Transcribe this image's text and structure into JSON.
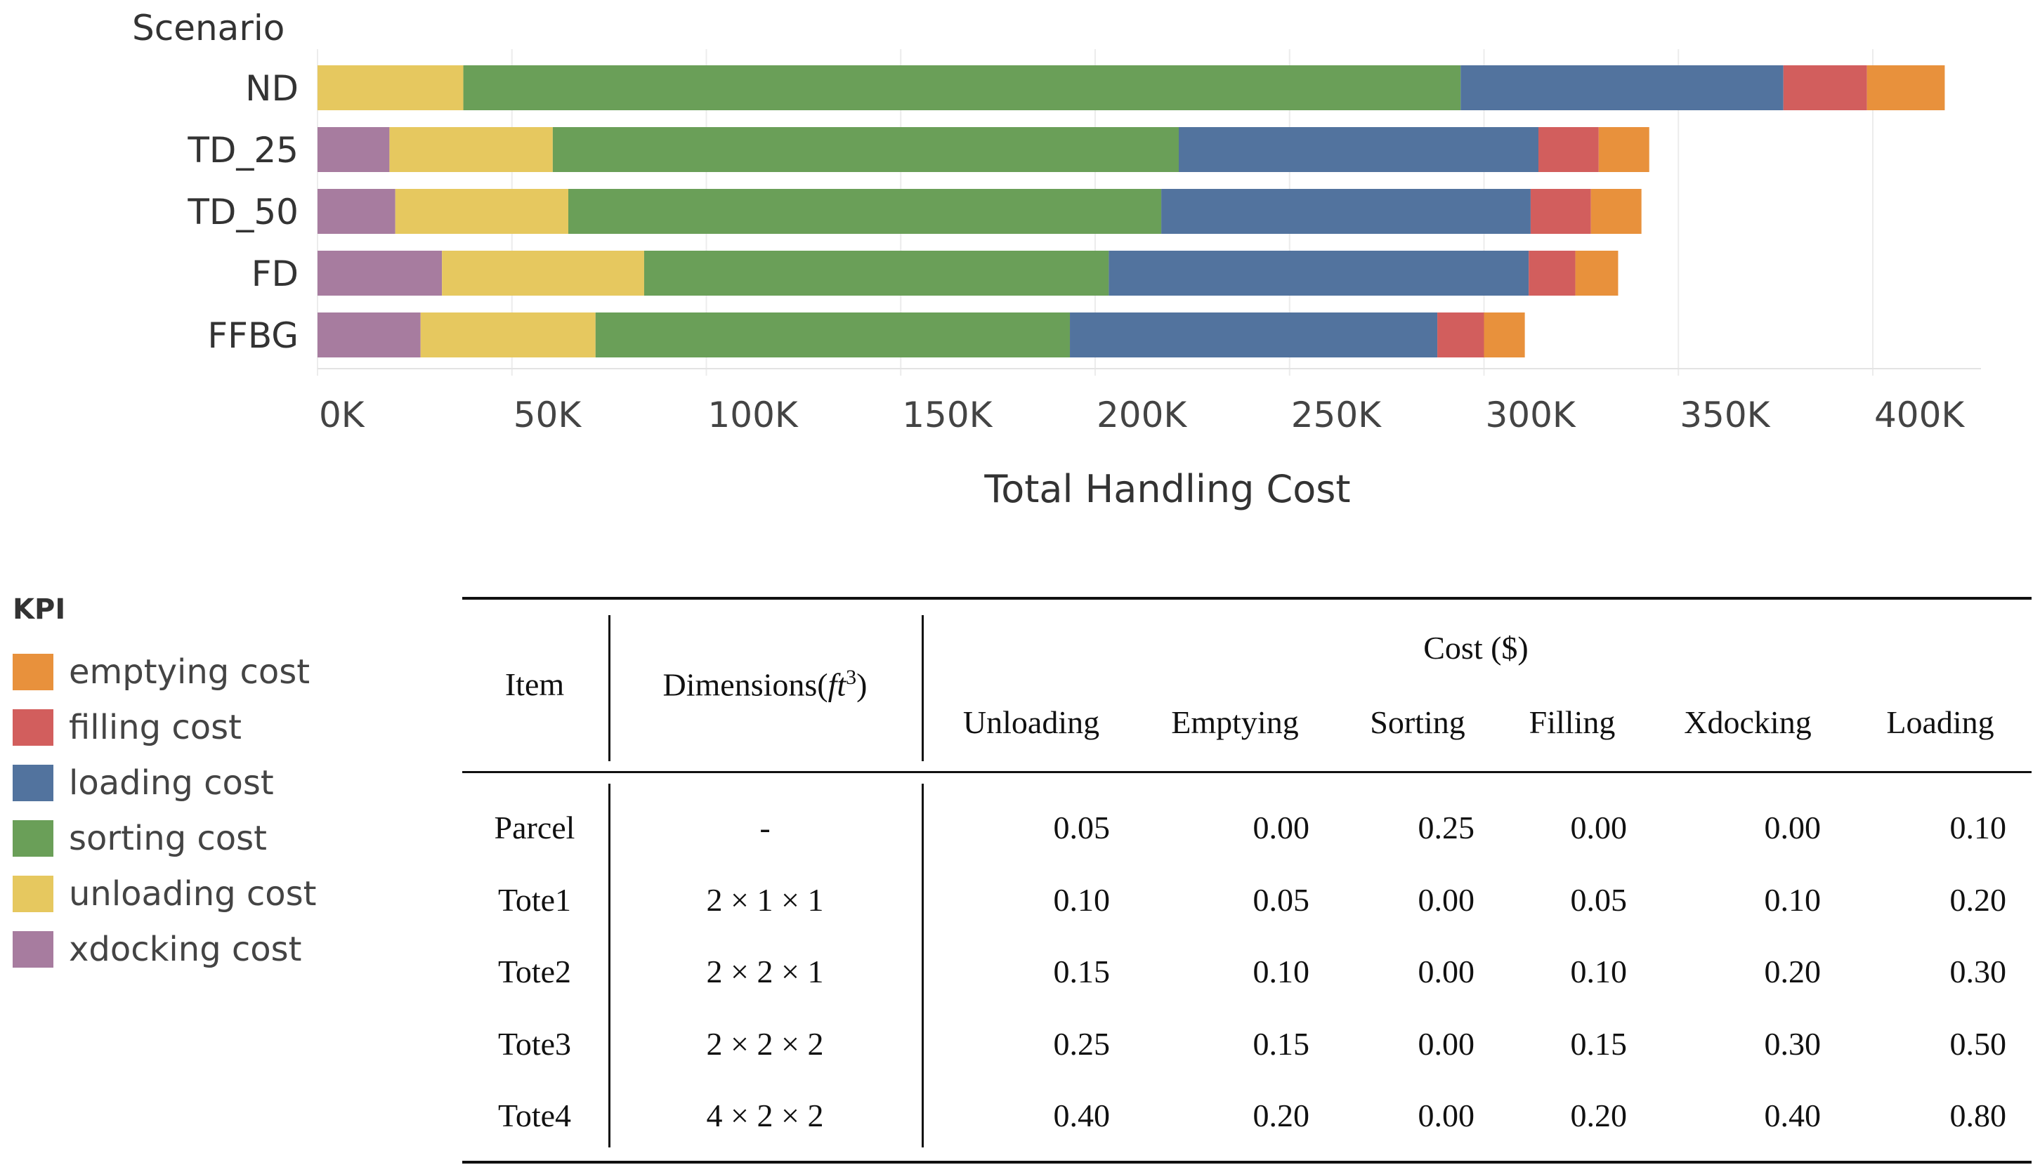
{
  "chart_data": {
    "type": "bar",
    "orientation": "horizontal",
    "stacked": true,
    "category_axis_title": "Scenario",
    "categories": [
      "ND",
      "TD_25",
      "TD_50",
      "FD",
      "FFBG"
    ],
    "series": [
      {
        "name": "xdocking cost",
        "color": "#A77C9F",
        "values": [
          0,
          18500,
          20000,
          32000,
          26500
        ]
      },
      {
        "name": "unloading cost",
        "color": "#E6C85F",
        "values": [
          37500,
          42000,
          44500,
          52000,
          45000
        ]
      },
      {
        "name": "sorting cost",
        "color": "#6A9F58",
        "values": [
          256500,
          161000,
          152500,
          119500,
          122000
        ]
      },
      {
        "name": "loading cost",
        "color": "#52739E",
        "values": [
          83000,
          92500,
          95000,
          108000,
          94500
        ]
      },
      {
        "name": "filling cost",
        "color": "#D25E5D",
        "values": [
          21500,
          15500,
          15500,
          12000,
          12000
        ]
      },
      {
        "name": "emptying cost",
        "color": "#E8913C",
        "values": [
          20000,
          13000,
          13000,
          11000,
          10500
        ]
      }
    ],
    "xlabel": "Total Handling Cost",
    "xlim": [
      0,
      430000
    ],
    "xticks": [
      0,
      50000,
      100000,
      150000,
      200000,
      250000,
      300000,
      350000,
      400000
    ],
    "xtick_labels": [
      "0K",
      "50K",
      "100K",
      "150K",
      "200K",
      "250K",
      "300K",
      "350K",
      "400K"
    ],
    "grid": true,
    "legend_position": "bottom-left"
  },
  "legend": {
    "title": "KPI",
    "items": [
      {
        "label": "emptying cost",
        "color": "#E8913C"
      },
      {
        "label": "filling cost",
        "color": "#D25E5D"
      },
      {
        "label": "loading cost",
        "color": "#52739E"
      },
      {
        "label": "sorting cost",
        "color": "#6A9F58"
      },
      {
        "label": "unloading cost",
        "color": "#E6C85F"
      },
      {
        "label": "xdocking cost",
        "color": "#A77C9F"
      }
    ]
  },
  "table": {
    "header": {
      "item": "Item",
      "dimensions": "Dimensions",
      "dimensions_unit": "ft",
      "dimensions_exp": "3",
      "cost_group": "Cost ($)",
      "cost_columns": [
        "Unloading",
        "Emptying",
        "Sorting",
        "Filling",
        "Xdocking",
        "Loading"
      ]
    },
    "rows": [
      {
        "item": "Parcel",
        "dimensions": "-",
        "costs": [
          "0.05",
          "0.00",
          "0.25",
          "0.00",
          "0.00",
          "0.10"
        ]
      },
      {
        "item": "Tote1",
        "dimensions": "2 × 1 × 1",
        "costs": [
          "0.10",
          "0.05",
          "0.00",
          "0.05",
          "0.10",
          "0.20"
        ]
      },
      {
        "item": "Tote2",
        "dimensions": "2 × 2 × 1",
        "costs": [
          "0.15",
          "0.10",
          "0.00",
          "0.10",
          "0.20",
          "0.30"
        ]
      },
      {
        "item": "Tote3",
        "dimensions": "2 × 2 × 2",
        "costs": [
          "0.25",
          "0.15",
          "0.00",
          "0.15",
          "0.30",
          "0.50"
        ]
      },
      {
        "item": "Tote4",
        "dimensions": "4 × 2 × 2",
        "costs": [
          "0.40",
          "0.20",
          "0.00",
          "0.20",
          "0.40",
          "0.80"
        ]
      }
    ]
  }
}
